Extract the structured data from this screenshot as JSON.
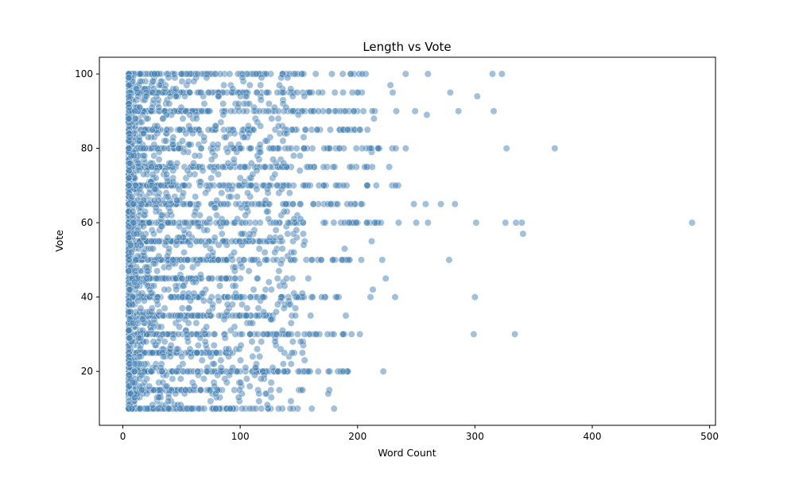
{
  "chart_data": {
    "type": "scatter",
    "title": "Length vs Vote",
    "xlabel": "Word Count",
    "ylabel": "Vote",
    "xlim": [
      -20,
      505
    ],
    "ylim": [
      5.5,
      104.5
    ],
    "xticks": [
      0,
      100,
      200,
      300,
      400,
      500
    ],
    "yticks": [
      20,
      40,
      60,
      80,
      100
    ],
    "grid": false,
    "legend": "none",
    "point_color": "#4682b4",
    "point_opacity": 0.5,
    "series": [
      {
        "points": [
          [
            485,
            60
          ],
          [
            368,
            80
          ],
          [
            341,
            57
          ],
          [
            340,
            60
          ],
          [
            335,
            60
          ],
          [
            334,
            30
          ],
          [
            327,
            80
          ],
          [
            326,
            60
          ],
          [
            323,
            100
          ],
          [
            315,
            100
          ],
          [
            316,
            90
          ],
          [
            302,
            94
          ],
          [
            301,
            60
          ],
          [
            300,
            40
          ],
          [
            299,
            30
          ],
          [
            286,
            90
          ],
          [
            279,
            95
          ],
          [
            278,
            50
          ],
          [
            283,
            65
          ],
          [
            271,
            65
          ],
          [
            260,
            100
          ],
          [
            259,
            89
          ],
          [
            258,
            65
          ],
          [
            260,
            60
          ],
          [
            250,
            60
          ],
          [
            248,
            65
          ],
          [
            249,
            90
          ],
          [
            241,
            100
          ],
          [
            241,
            80
          ],
          [
            235,
            60
          ],
          [
            233,
            90
          ],
          [
            232,
            40
          ],
          [
            230,
            95
          ],
          [
            228,
            97
          ],
          [
            227,
            75
          ],
          [
            224,
            45
          ],
          [
            222,
            20
          ],
          [
            221,
            50
          ],
          [
            214,
            88
          ],
          [
            213,
            42
          ],
          [
            212,
            55
          ],
          [
            212,
            79
          ],
          [
            211,
            40
          ],
          [
            210,
            80
          ],
          [
            208,
            70
          ],
          [
            207,
            100
          ],
          [
            205,
            90
          ],
          [
            204,
            65
          ],
          [
            202,
            30
          ],
          [
            200,
            60
          ],
          [
            199,
            75
          ],
          [
            197,
            85
          ],
          [
            194,
            100
          ],
          [
            192,
            20
          ],
          [
            190,
            35
          ],
          [
            189,
            53
          ],
          [
            187,
            50
          ],
          [
            185,
            70
          ],
          [
            184,
            40
          ],
          [
            182,
            90
          ],
          [
            180,
            10
          ],
          [
            179,
            65
          ],
          [
            178,
            30
          ],
          [
            176,
            15
          ],
          [
            175,
            14
          ],
          [
            174,
            80
          ],
          [
            173,
            70
          ],
          [
            172,
            40
          ],
          [
            171,
            60
          ],
          [
            170,
            95
          ],
          [
            168,
            85
          ],
          [
            165,
            30
          ],
          [
            163,
            75
          ],
          [
            161,
            10
          ],
          [
            160,
            35
          ],
          [
            158,
            45
          ],
          [
            156,
            20
          ],
          [
            155,
            55
          ],
          [
            153,
            25
          ],
          [
            151,
            78
          ],
          [
            150,
            15
          ],
          [
            149,
            10
          ],
          [
            147,
            60
          ],
          [
            145,
            90
          ],
          [
            143,
            50
          ],
          [
            141,
            40
          ],
          [
            140,
            70
          ],
          [
            138,
            85
          ],
          [
            136,
            30
          ],
          [
            135,
            62
          ],
          [
            133,
            47
          ],
          [
            131,
            20
          ],
          [
            130,
            80
          ],
          [
            128,
            75
          ],
          [
            126,
            10
          ],
          [
            125,
            35
          ],
          [
            123,
            95
          ],
          [
            121,
            52
          ],
          [
            120,
            65
          ],
          [
            118,
            28
          ],
          [
            116,
            12
          ],
          [
            115,
            45
          ],
          [
            113,
            88
          ],
          [
            112,
            58
          ],
          [
            110,
            20
          ],
          [
            108,
            72
          ],
          [
            106,
            33
          ],
          [
            105,
            100
          ]
        ]
      }
    ]
  }
}
